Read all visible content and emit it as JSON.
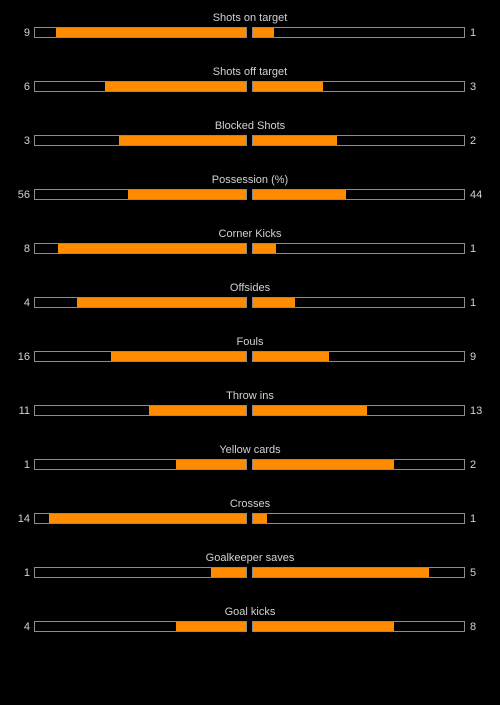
{
  "colors": {
    "background": "#000000",
    "fill": "#ff8c00",
    "border": "#8c8c8c",
    "text": "#d2d2d2"
  },
  "stats": [
    {
      "title": "Shots on target",
      "home": "9",
      "away": "1",
      "home_share": 0.9,
      "away_share": 0.1
    },
    {
      "title": "Shots off target",
      "home": "6",
      "away": "3",
      "home_share": 0.667,
      "away_share": 0.333
    },
    {
      "title": "Blocked Shots",
      "home": "3",
      "away": "2",
      "home_share": 0.6,
      "away_share": 0.4
    },
    {
      "title": "Possession (%)",
      "home": "56",
      "away": "44",
      "home_share": 0.56,
      "away_share": 0.44
    },
    {
      "title": "Corner Kicks",
      "home": "8",
      "away": "1",
      "home_share": 0.889,
      "away_share": 0.111
    },
    {
      "title": "Offsides",
      "home": "4",
      "away": "1",
      "home_share": 0.8,
      "away_share": 0.2
    },
    {
      "title": "Fouls",
      "home": "16",
      "away": "9",
      "home_share": 0.64,
      "away_share": 0.36
    },
    {
      "title": "Throw ins",
      "home": "11",
      "away": "13",
      "home_share": 0.458,
      "away_share": 0.542
    },
    {
      "title": "Yellow cards",
      "home": "1",
      "away": "2",
      "home_share": 0.333,
      "away_share": 0.667
    },
    {
      "title": "Crosses",
      "home": "14",
      "away": "1",
      "home_share": 0.933,
      "away_share": 0.067
    },
    {
      "title": "Goalkeeper saves",
      "home": "1",
      "away": "5",
      "home_share": 0.167,
      "away_share": 0.833
    },
    {
      "title": "Goal kicks",
      "home": "4",
      "away": "8",
      "home_share": 0.333,
      "away_share": 0.667
    }
  ]
}
